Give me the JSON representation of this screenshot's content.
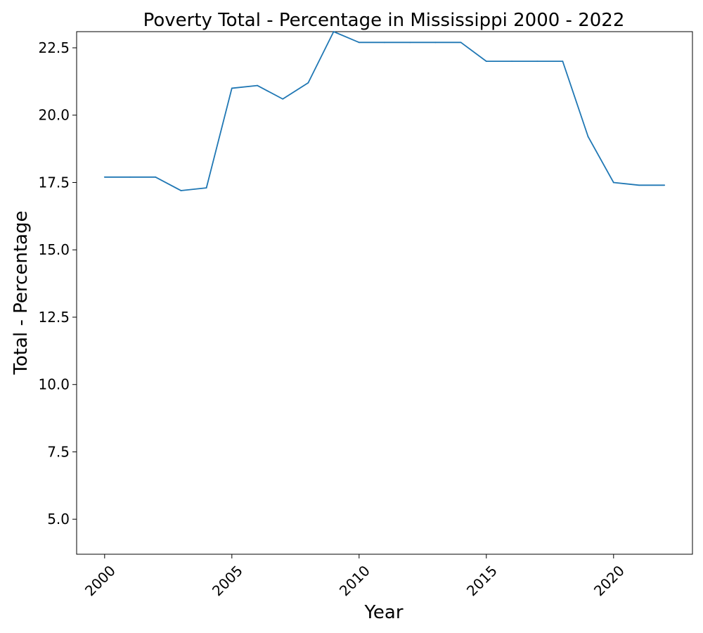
{
  "chart_data": {
    "type": "line",
    "title": "Poverty Total - Percentage in Mississippi 2000 - 2022",
    "xlabel": "Year",
    "ylabel": "Total - Percentage",
    "x": [
      2000,
      2001,
      2002,
      2003,
      2004,
      2005,
      2006,
      2007,
      2008,
      2009,
      2010,
      2011,
      2012,
      2013,
      2014,
      2015,
      2016,
      2017,
      2018,
      2019,
      2020,
      2021,
      2022
    ],
    "series": [
      {
        "values": [
          17.7,
          17.7,
          17.7,
          17.2,
          17.3,
          21.0,
          21.1,
          20.6,
          21.2,
          23.1,
          22.7,
          22.7,
          22.7,
          22.7,
          22.7,
          22.0,
          22.0,
          22.0,
          22.0,
          19.2,
          17.5,
          17.4,
          17.4
        ],
        "color": "#1f77b4"
      }
    ],
    "xlim": [
      1998.9,
      2023.1
    ],
    "ylim": [
      3.7,
      23.1
    ],
    "xticks": [
      2000,
      2005,
      2010,
      2015,
      2020
    ],
    "xtick_labels": [
      "2000",
      "2005",
      "2010",
      "2015",
      "2020"
    ],
    "yticks": [
      5.0,
      7.5,
      10.0,
      12.5,
      15.0,
      17.5,
      20.0,
      22.5
    ],
    "ytick_labels": [
      "5.0",
      "7.5",
      "10.0",
      "12.5",
      "15.0",
      "17.5",
      "20.0",
      "22.5"
    ],
    "xtick_rotation": "45 degrees",
    "grid": false,
    "legend": "none"
  }
}
